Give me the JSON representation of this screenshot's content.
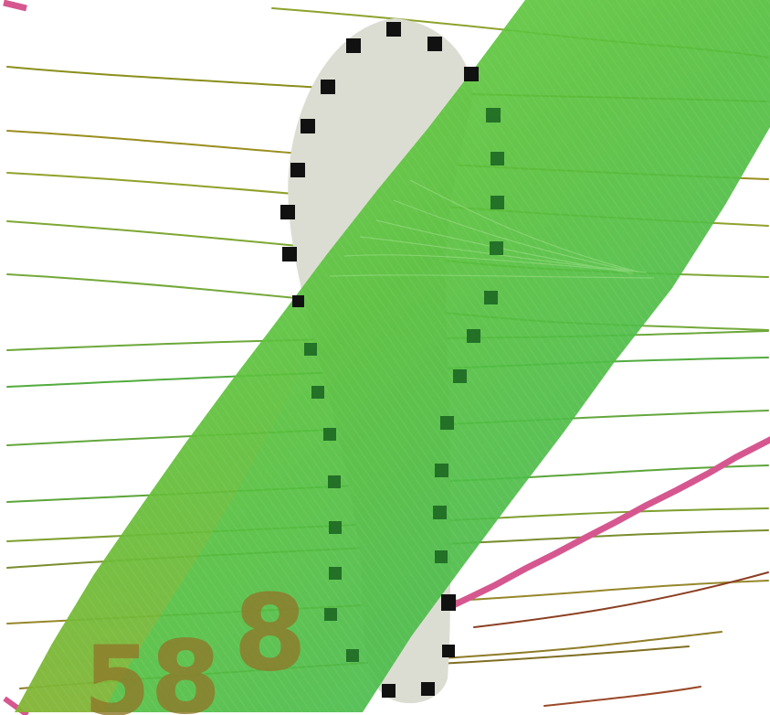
{
  "map": {
    "background_color": "#ffffff",
    "contour_colors": {
      "olive": "#9fa52b",
      "green": "#64a83a",
      "brown": "#9b3e24"
    },
    "boundary_color": "#d6578f",
    "island_color": "#dcddd2",
    "swath_color": "#5ebe3c",
    "marker_color": "#111111",
    "marker_overlay_color": "#1e6b24",
    "labels": {
      "left_digit": "5",
      "middle_digit": "8",
      "right_digit": "8"
    }
  }
}
